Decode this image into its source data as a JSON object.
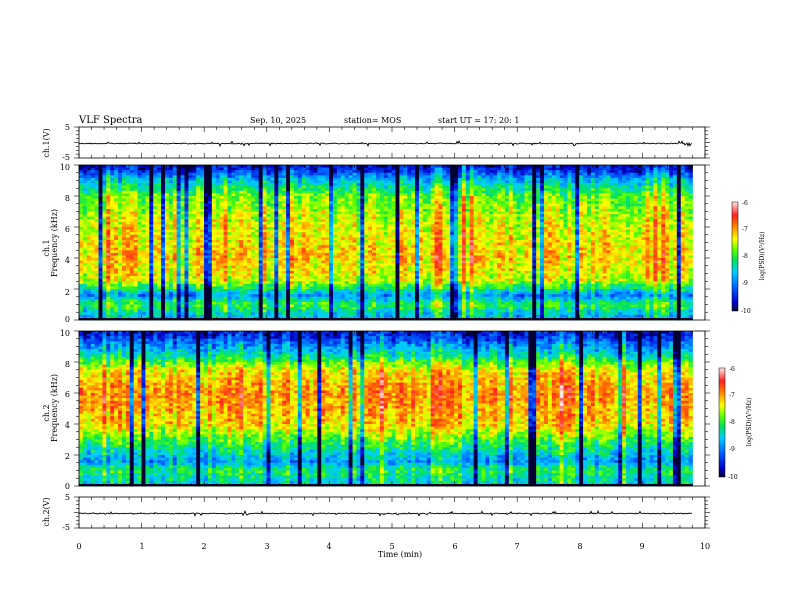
{
  "header": {
    "title": "VLF Spectra",
    "date": "Sep. 10, 2025",
    "station": "station= MOS",
    "start": "start  UT =   17: 20: 1"
  },
  "chart_data": [
    {
      "id": "ch1-waveform",
      "type": "line",
      "ylabel": "ch.1(V)",
      "ylim": [
        -5,
        5
      ],
      "yticks": [
        "5",
        "-5"
      ],
      "baseline_value": 0
    },
    {
      "id": "ch1-spectrogram",
      "type": "heatmap",
      "ylabel": "Frequency (kHz)",
      "channel_label": "ch.1",
      "ylim": [
        0,
        10
      ],
      "yticks": [
        "0",
        "2",
        "4",
        "6",
        "8",
        "10"
      ],
      "xlim": [
        0,
        10
      ],
      "data_end_min": 9.8,
      "band_profile": [
        {
          "f": 0.3,
          "level": -8.6
        },
        {
          "f": 1.0,
          "level": -8.0
        },
        {
          "f": 1.6,
          "level": -8.9
        },
        {
          "f": 2.5,
          "level": -7.5
        },
        {
          "f": 4.0,
          "level": -7.2
        },
        {
          "f": 6.0,
          "level": -7.4
        },
        {
          "f": 8.0,
          "level": -7.8
        },
        {
          "f": 9.0,
          "level": -8.6
        },
        {
          "f": 9.8,
          "level": -9.6
        }
      ],
      "colorbar": {
        "label": "log(PSD)(V²/Hz)",
        "ticks": [
          "-6",
          "-7",
          "-8",
          "-9",
          "-10"
        ],
        "range": [
          -10,
          -6
        ]
      }
    },
    {
      "id": "ch2-spectrogram",
      "type": "heatmap",
      "ylabel": "Frequency (kHz)",
      "channel_label": "ch.2",
      "ylim": [
        0,
        10
      ],
      "yticks": [
        "0",
        "2",
        "4",
        "6",
        "8",
        "10"
      ],
      "xlim": [
        0,
        10
      ],
      "data_end_min": 9.8,
      "band_profile": [
        {
          "f": 0.3,
          "level": -8.4
        },
        {
          "f": 1.0,
          "level": -8.1
        },
        {
          "f": 1.6,
          "level": -8.8
        },
        {
          "f": 2.5,
          "level": -8.2
        },
        {
          "f": 4.0,
          "level": -7.2
        },
        {
          "f": 6.0,
          "level": -6.9
        },
        {
          "f": 7.5,
          "level": -7.3
        },
        {
          "f": 8.5,
          "level": -8.4
        },
        {
          "f": 9.8,
          "level": -9.5
        }
      ],
      "colorbar": {
        "label": "log(PSD)(V²/Hz)",
        "ticks": [
          "-6",
          "-7",
          "-8",
          "-9",
          "-10"
        ],
        "range": [
          -10,
          -6
        ]
      }
    },
    {
      "id": "ch2-waveform",
      "type": "line",
      "ylabel": "ch.2(V)",
      "ylim": [
        -5,
        5
      ],
      "yticks": [
        "5",
        "-5"
      ],
      "baseline_value": 0
    }
  ],
  "xaxis": {
    "label": "Time (min)",
    "range": [
      0,
      10
    ],
    "ticks": [
      "0",
      "1",
      "2",
      "3",
      "4",
      "5",
      "6",
      "7",
      "8",
      "9",
      "10"
    ]
  }
}
